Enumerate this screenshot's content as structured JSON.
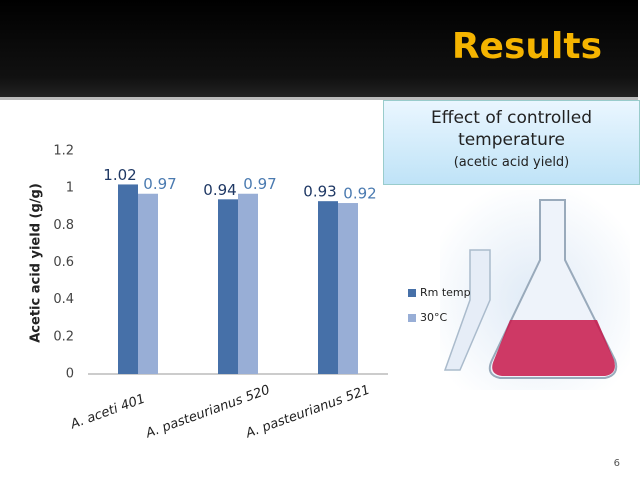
{
  "slide": {
    "title": "Results",
    "box_title": "Effect of controlled temperature",
    "box_subtitle": "(acetic acid yield)",
    "page_number": "6"
  },
  "chart_data": {
    "type": "bar",
    "y_label": "Acetic acid yield (g/g)",
    "categories": [
      "A. aceti 401",
      "A. pasteurianus 520",
      "A. pasteurianus 521"
    ],
    "series": [
      {
        "name": "Rm temp",
        "color": "#4670a8",
        "values": [
          1.02,
          0.94,
          0.93
        ]
      },
      {
        "name": "30°C",
        "color": "#98aed6",
        "values": [
          0.97,
          0.97,
          0.92
        ]
      }
    ],
    "ylim": [
      0,
      1.2
    ],
    "yticks": [
      0,
      0.2,
      0.4,
      0.6,
      0.8,
      1,
      1.2
    ],
    "grid": false,
    "legend": "right"
  }
}
